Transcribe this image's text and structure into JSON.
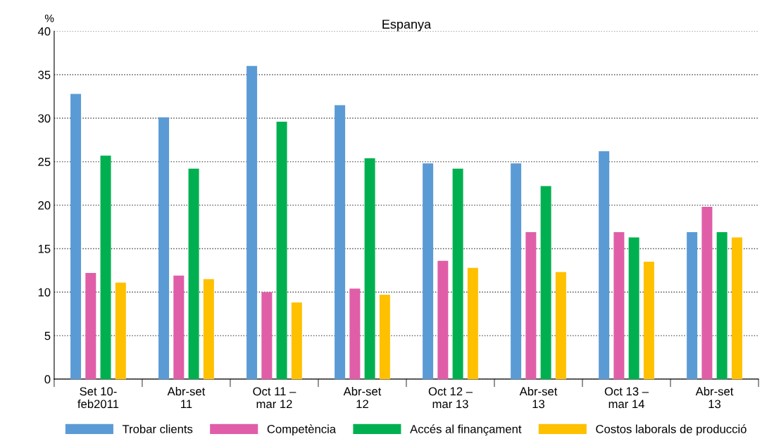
{
  "chart_data": {
    "type": "bar",
    "title": "Espanya",
    "ylabel": "%",
    "categories": [
      "Set 10-\nfeb2011",
      "Abr-set\n11",
      "Oct 11 –\nmar 12",
      "Abr-set\n12",
      "Oct 12 –\nmar 13",
      "Abr-set\n13",
      "Oct 13 –\nmar 14",
      "Abr-set\n13"
    ],
    "series": [
      {
        "name": "Trobar clients",
        "color": "#5b9bd5",
        "values": [
          32.8,
          30.1,
          36.0,
          31.5,
          24.8,
          24.8,
          26.2,
          16.9
        ]
      },
      {
        "name": "Competència",
        "color": "#e05ea8",
        "values": [
          12.2,
          11.9,
          10.0,
          10.4,
          13.6,
          16.9,
          16.9,
          19.8
        ]
      },
      {
        "name": "Accés al finançament",
        "color": "#00b050",
        "values": [
          25.7,
          24.2,
          29.6,
          25.4,
          24.2,
          22.2,
          16.3,
          16.9
        ]
      },
      {
        "name": "Costos laborals de producció",
        "color": "#ffc000",
        "values": [
          11.1,
          11.5,
          8.8,
          9.7,
          12.8,
          12.3,
          13.5,
          16.3
        ]
      }
    ],
    "ylim": [
      0,
      40
    ],
    "yticks": [
      0,
      5,
      10,
      15,
      20,
      25,
      30,
      35,
      40
    ],
    "grid": "y",
    "legend": "bottom"
  }
}
